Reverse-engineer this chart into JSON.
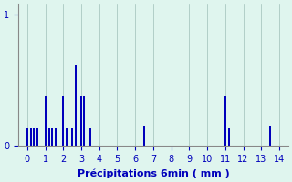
{
  "xlabel": "Précipitations 6min ( mm )",
  "background_color": "#dff5ee",
  "bar_color": "#0000bb",
  "grid_color": "#9fbfb8",
  "axis_color": "#888888",
  "text_color": "#0000bb",
  "xlim": [
    -0.5,
    14.5
  ],
  "ylim": [
    0,
    1.08
  ],
  "yticks": [
    0,
    1
  ],
  "xticks": [
    0,
    1,
    2,
    3,
    4,
    5,
    6,
    7,
    8,
    9,
    10,
    11,
    12,
    13,
    14
  ],
  "bar_positions": [
    0.0,
    0.2,
    0.35,
    0.55,
    1.0,
    1.2,
    1.4,
    1.6,
    2.0,
    2.2,
    2.5,
    2.7,
    3.0,
    3.15,
    3.5,
    6.5,
    11.0,
    11.2,
    13.5
  ],
  "bar_heights": [
    0.13,
    0.13,
    0.13,
    0.13,
    0.38,
    0.13,
    0.13,
    0.13,
    0.38,
    0.13,
    0.13,
    0.62,
    0.38,
    0.38,
    0.13,
    0.15,
    0.38,
    0.13,
    0.15
  ],
  "bar_width": 0.1,
  "xlabel_fontsize": 8,
  "tick_fontsize": 7
}
